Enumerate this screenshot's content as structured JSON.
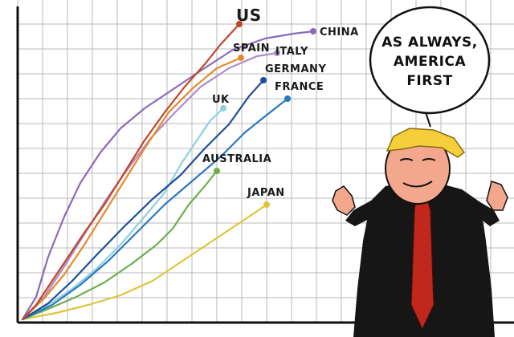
{
  "labels": {
    "us": "US",
    "china": "CHINA",
    "spain": "SPAIN",
    "italy": "ITALY",
    "germany": "GERMANY",
    "france": "FRANCE",
    "uk": "UK",
    "australia": "AUSTRALIA",
    "japan": "JAPAN"
  },
  "speech": {
    "line1": "AS ALWAYS,",
    "line2": "AMERICA",
    "line3": "FIRST"
  },
  "colors": {
    "us": "#c0452a",
    "china": "#8a6bb8",
    "spain": "#e58a2e",
    "italy": "#b08bd0",
    "germany": "#1f4e9c",
    "france": "#2a78bf",
    "uk": "#8fd0e0",
    "australia": "#6ab04c",
    "japan": "#e0c43a",
    "grid": "#b9b9b9",
    "suit": "#161616",
    "tie": "#c0281e",
    "hair": "#f5cf3a",
    "skin": "#f3a78d"
  }
}
